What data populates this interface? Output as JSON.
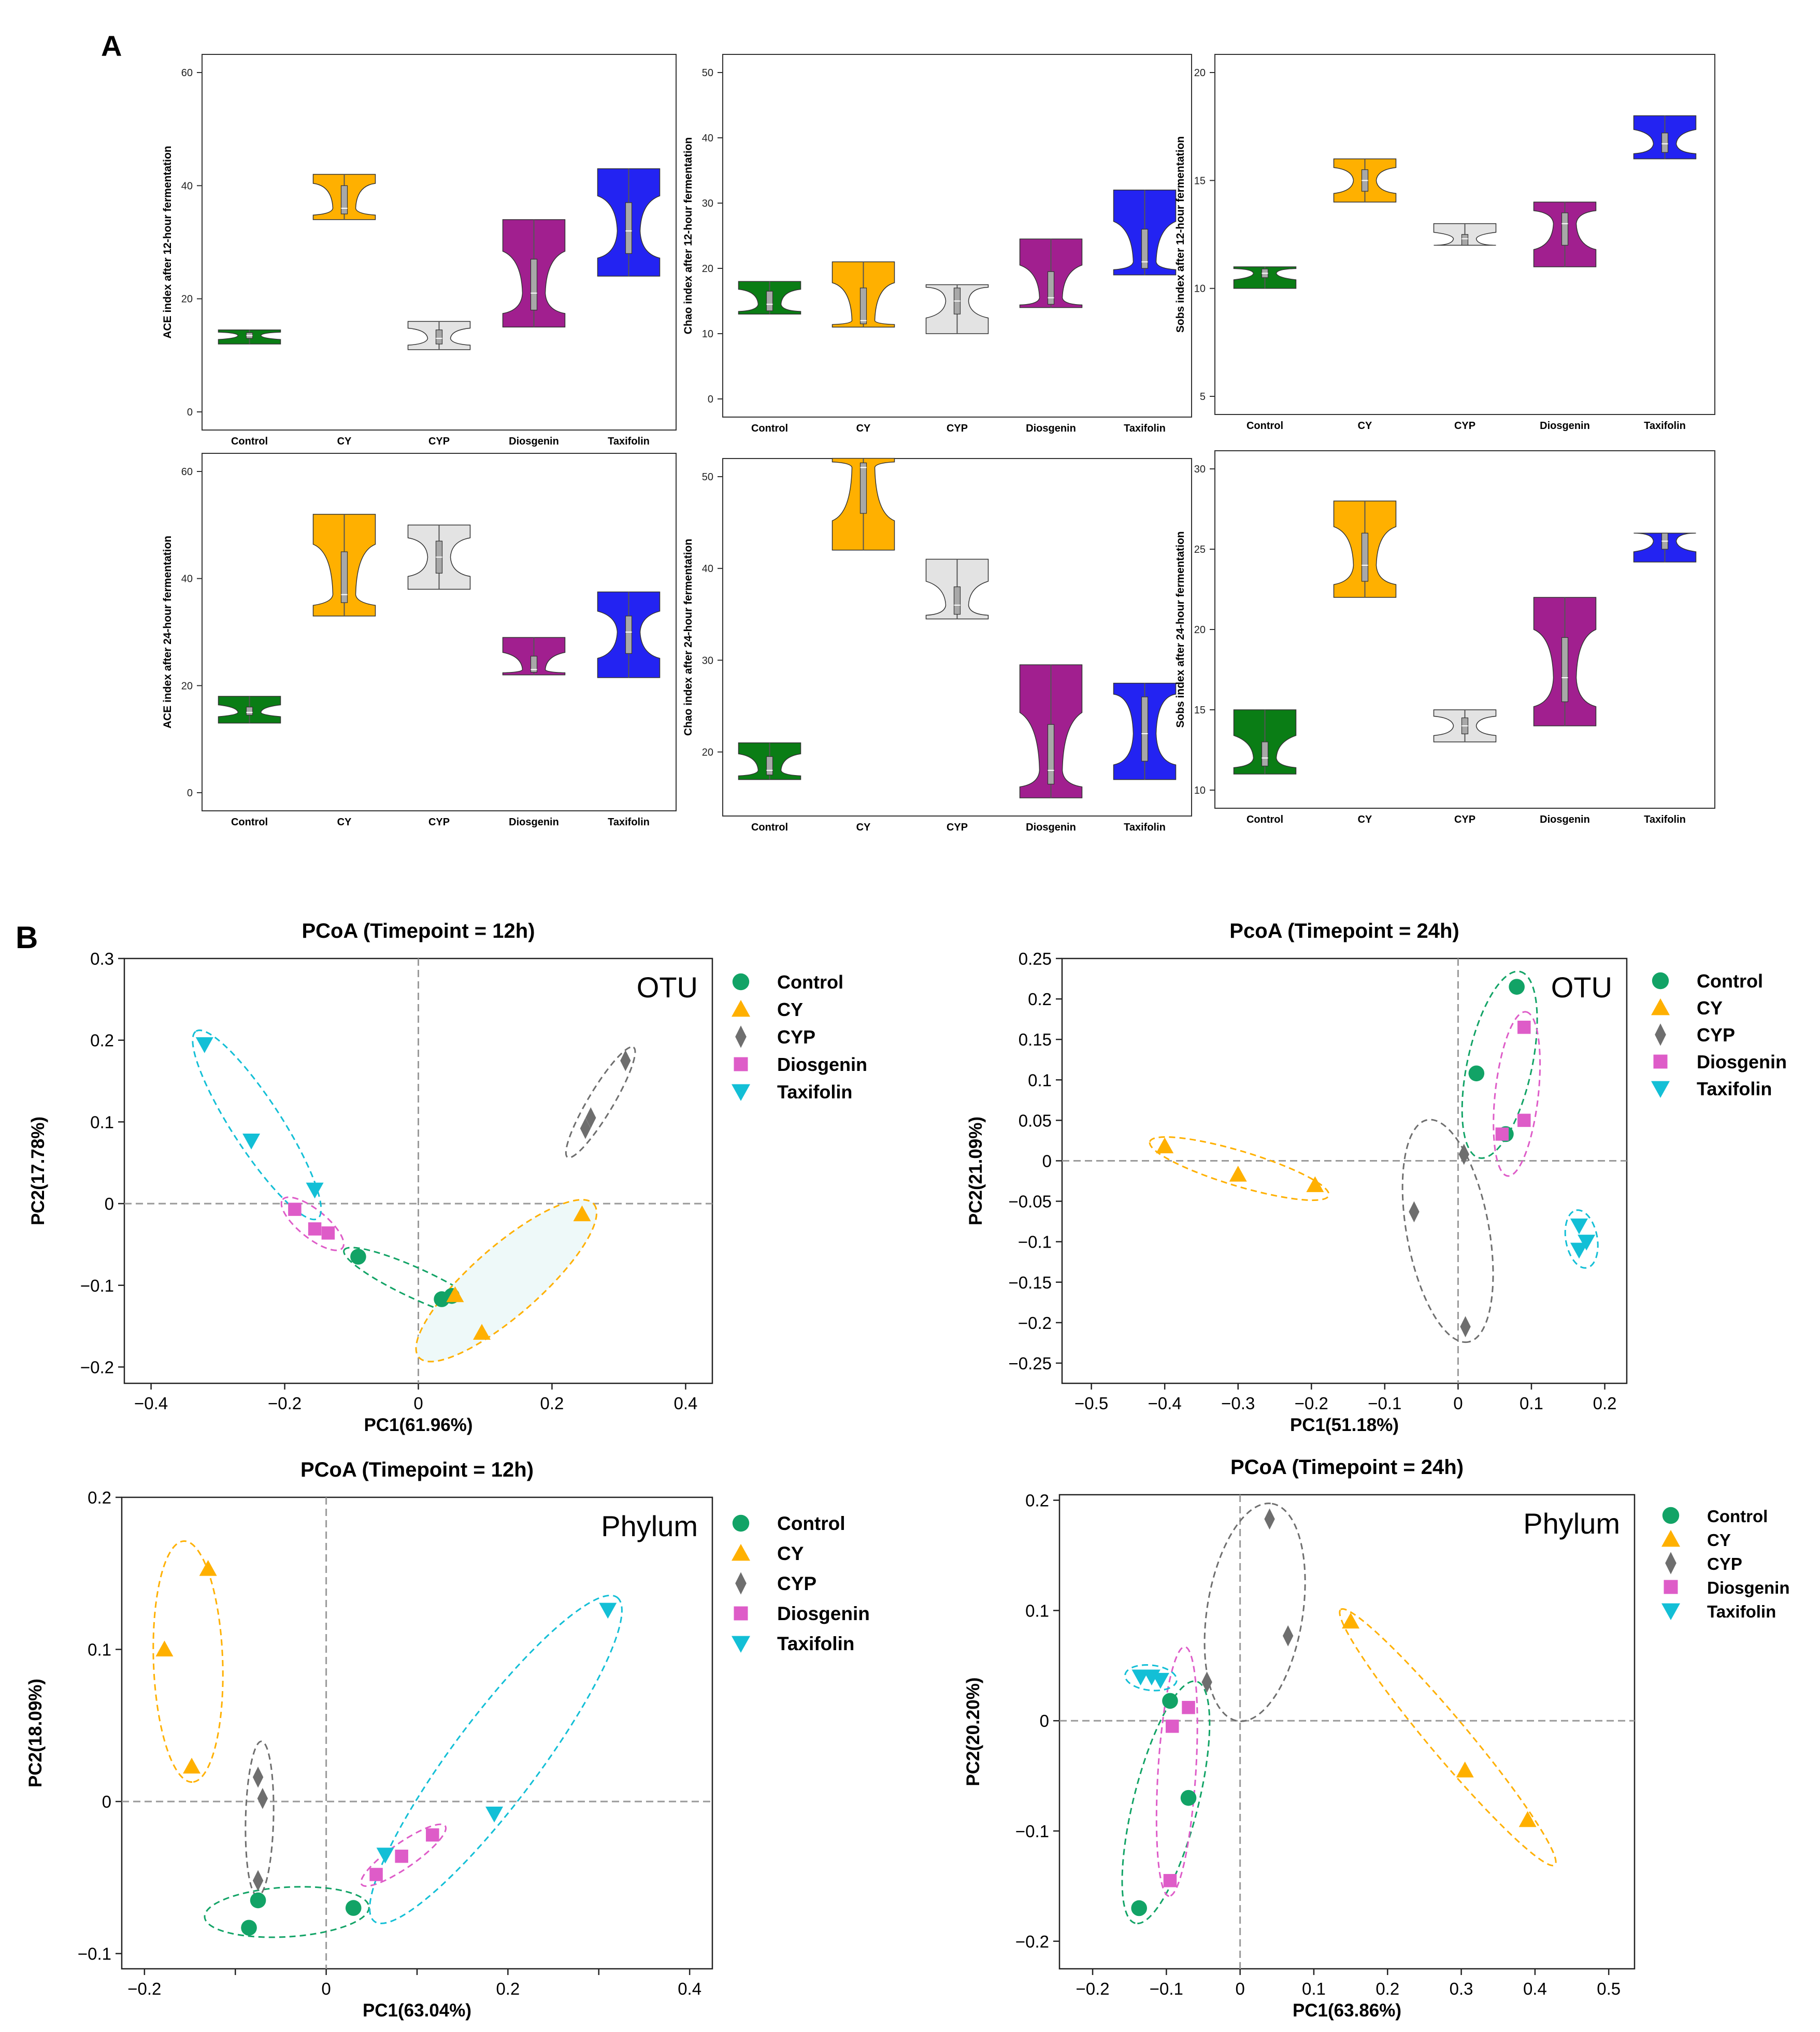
{
  "panel_labels": {
    "a": "A",
    "b": "B"
  },
  "groups": [
    "Control",
    "CY",
    "CYP",
    "Diosgenin",
    "Taxifolin"
  ],
  "colors": {
    "Control_violin": "#0a7d15",
    "CY_violin": "#ffb000",
    "CYP_violin": "#e3e3e3",
    "Diosgenin_violin": "#a11f8f",
    "Taxifolin_violin": "#2323f2",
    "Control_pt": "#12a366",
    "CY_pt": "#ffb000",
    "CYP_pt": "#6e6e6e",
    "Diosgenin_pt": "#de5cc8",
    "Taxifolin_pt": "#13bfd6",
    "box": "#a8a8a8",
    "ellipse_fill_cy": "#eef9f9",
    "axis": "#000000",
    "zero": "#9a9a9a"
  },
  "chart_data": [
    {
      "type": "violin",
      "id": "ace12",
      "ylabel": "ACE index after 12-hour fermentation",
      "ylim": [
        0,
        60
      ],
      "yticks": [
        0,
        20,
        40,
        60
      ],
      "categories": [
        "Control",
        "CY",
        "CYP",
        "Diosgenin",
        "Taxifolin"
      ],
      "series": [
        {
          "name": "Control",
          "min": 12,
          "q1": 13,
          "median": 13.5,
          "q3": 14,
          "max": 14.5
        },
        {
          "name": "CY",
          "min": 34,
          "q1": 35,
          "median": 36,
          "q3": 40,
          "max": 42
        },
        {
          "name": "CYP",
          "min": 11,
          "q1": 12,
          "median": 13,
          "q3": 14.5,
          "max": 16
        },
        {
          "name": "Diosgenin",
          "min": 15,
          "q1": 18,
          "median": 21,
          "q3": 27,
          "max": 34
        },
        {
          "name": "Taxifolin",
          "min": 24,
          "q1": 28,
          "median": 32,
          "q3": 37,
          "max": 43
        }
      ]
    },
    {
      "type": "violin",
      "id": "chao12",
      "ylabel": "Chao index after 12-hour fermentation",
      "ylim": [
        0,
        50
      ],
      "yticks": [
        0,
        10,
        20,
        30,
        40,
        50
      ],
      "categories": [
        "Control",
        "CY",
        "CYP",
        "Diosgenin",
        "Taxifolin"
      ],
      "series": [
        {
          "name": "Control",
          "min": 13,
          "q1": 13.5,
          "median": 14.5,
          "q3": 16.5,
          "max": 18
        },
        {
          "name": "CY",
          "min": 11,
          "q1": 11.5,
          "median": 12,
          "q3": 17,
          "max": 21
        },
        {
          "name": "CYP",
          "min": 10,
          "q1": 13,
          "median": 15,
          "q3": 17,
          "max": 17.5
        },
        {
          "name": "Diosgenin",
          "min": 14,
          "q1": 14.5,
          "median": 15.5,
          "q3": 19.5,
          "max": 24.5
        },
        {
          "name": "Taxifolin",
          "min": 19,
          "q1": 20,
          "median": 21,
          "q3": 26,
          "max": 32
        }
      ]
    },
    {
      "type": "violin",
      "id": "sobs12",
      "ylabel": "Sobs index after 12-hour fermentation",
      "ylim": [
        5,
        20
      ],
      "yticks": [
        5,
        10,
        15,
        20
      ],
      "categories": [
        "Control",
        "CY",
        "CYP",
        "Diosgenin",
        "Taxifolin"
      ],
      "series": [
        {
          "name": "Control",
          "min": 10,
          "q1": 10.5,
          "median": 10.7,
          "q3": 10.9,
          "max": 11
        },
        {
          "name": "CY",
          "min": 14,
          "q1": 14.5,
          "median": 15,
          "q3": 15.5,
          "max": 16
        },
        {
          "name": "CYP",
          "min": 12,
          "q1": 12,
          "median": 12.3,
          "q3": 12.5,
          "max": 13
        },
        {
          "name": "Diosgenin",
          "min": 11,
          "q1": 12,
          "median": 13,
          "q3": 13.5,
          "max": 14
        },
        {
          "name": "Taxifolin",
          "min": 16,
          "q1": 16.3,
          "median": 16.7,
          "q3": 17.2,
          "max": 18
        }
      ]
    },
    {
      "type": "violin",
      "id": "ace24",
      "ylabel": "ACE index after 24-hour fermentation",
      "ylim": [
        0,
        60
      ],
      "yticks": [
        0,
        20,
        40,
        60
      ],
      "categories": [
        "Control",
        "CY",
        "CYP",
        "Diosgenin",
        "Taxifolin"
      ],
      "series": [
        {
          "name": "Control",
          "min": 13,
          "q1": 14.5,
          "median": 15,
          "q3": 16,
          "max": 18
        },
        {
          "name": "CY",
          "min": 33,
          "q1": 35.5,
          "median": 37,
          "q3": 45,
          "max": 52
        },
        {
          "name": "CYP",
          "min": 38,
          "q1": 41,
          "median": 44,
          "q3": 47,
          "max": 50
        },
        {
          "name": "Diosgenin",
          "min": 22,
          "q1": 22.5,
          "median": 23,
          "q3": 25.5,
          "max": 29
        },
        {
          "name": "Taxifolin",
          "min": 21.5,
          "q1": 26,
          "median": 30,
          "q3": 33,
          "max": 37.5
        }
      ]
    },
    {
      "type": "violin",
      "id": "chao24",
      "ylabel": "Chao index after 24-hour fermentation",
      "ylim": [
        15,
        50
      ],
      "yticks": [
        20,
        30,
        40,
        50
      ],
      "categories": [
        "Control",
        "CY",
        "CYP",
        "Diosgenin",
        "Taxifolin"
      ],
      "series": [
        {
          "name": "Control",
          "min": 17,
          "q1": 17.5,
          "median": 18,
          "q3": 19.5,
          "max": 21
        },
        {
          "name": "CY",
          "min": 42,
          "q1": 46,
          "median": 51,
          "q3": 51.5,
          "max": 52
        },
        {
          "name": "CYP",
          "min": 34.5,
          "q1": 35,
          "median": 36,
          "q3": 38,
          "max": 41
        },
        {
          "name": "Diosgenin",
          "min": 15,
          "q1": 16.5,
          "median": 18,
          "q3": 23,
          "max": 29.5
        },
        {
          "name": "Taxifolin",
          "min": 17,
          "q1": 19,
          "median": 22,
          "q3": 26,
          "max": 27.5
        }
      ]
    },
    {
      "type": "violin",
      "id": "sobs24",
      "ylabel": "Sobs index after 24-hour fermentation",
      "ylim": [
        10,
        30
      ],
      "yticks": [
        10,
        15,
        20,
        25,
        30
      ],
      "categories": [
        "Control",
        "CY",
        "CYP",
        "Diosgenin",
        "Taxifolin"
      ],
      "series": [
        {
          "name": "Control",
          "min": 11,
          "q1": 11.5,
          "median": 12,
          "q3": 13,
          "max": 15
        },
        {
          "name": "CY",
          "min": 22,
          "q1": 23,
          "median": 24,
          "q3": 26,
          "max": 28
        },
        {
          "name": "CYP",
          "min": 13,
          "q1": 13.5,
          "median": 14,
          "q3": 14.5,
          "max": 15
        },
        {
          "name": "Diosgenin",
          "min": 14,
          "q1": 15.5,
          "median": 17,
          "q3": 19.5,
          "max": 22
        },
        {
          "name": "Taxifolin",
          "min": 24.2,
          "q1": 25,
          "median": 25.5,
          "q3": 26,
          "max": 26
        }
      ]
    },
    {
      "type": "scatter",
      "id": "otu12",
      "title": "PCoA (Timepoint = 12h)",
      "tag": "OTU",
      "xlabel": "PC1(61.96%)",
      "ylabel": "PC2(17.78%)",
      "xlim": [
        -0.44,
        0.44
      ],
      "ylim": [
        -0.22,
        0.3
      ],
      "xticks": [
        -0.4,
        -0.2,
        0,
        0.2,
        0.4
      ],
      "xtick_labels": [
        "−0.4",
        "−0.2",
        "0",
        "0.2",
        "0.4"
      ],
      "yticks": [
        -0.2,
        -0.1,
        0,
        0.1,
        0.2,
        0.3
      ],
      "ytick_labels": [
        "−0.2",
        "−0.1",
        "0",
        "0.1",
        "0.2",
        "0.3"
      ],
      "legend": "right",
      "series": [
        {
          "name": "Control",
          "points": [
            [
              -0.09,
              -0.065
            ],
            [
              0.035,
              -0.117
            ],
            [
              0.05,
              -0.113
            ]
          ]
        },
        {
          "name": "CY",
          "points": [
            [
              0.245,
              -0.013
            ],
            [
              0.055,
              -0.112
            ],
            [
              0.095,
              -0.158
            ]
          ]
        },
        {
          "name": "CYP",
          "points": [
            [
              0.31,
              0.175
            ],
            [
              0.258,
              0.105
            ],
            [
              0.25,
              0.092
            ]
          ]
        },
        {
          "name": "Diosgenin",
          "points": [
            [
              -0.185,
              -0.007
            ],
            [
              -0.155,
              -0.031
            ],
            [
              -0.135,
              -0.036
            ]
          ]
        },
        {
          "name": "Taxifolin",
          "points": [
            [
              -0.32,
              0.195
            ],
            [
              -0.25,
              0.077
            ],
            [
              -0.155,
              0.017
            ]
          ]
        }
      ]
    },
    {
      "type": "scatter",
      "id": "otu24",
      "title": "PcoA (Timepoint = 24h)",
      "tag": "OTU",
      "xlabel": "PC1(51.18%)",
      "ylabel": "PC2(21.09%)",
      "xlim": [
        -0.54,
        0.23
      ],
      "ylim": [
        -0.275,
        0.25
      ],
      "xticks": [
        -0.5,
        -0.4,
        -0.3,
        -0.2,
        -0.1,
        0,
        0.1,
        0.2
      ],
      "xtick_labels": [
        "−0.5",
        "−0.4",
        "−0.3",
        "−0.2",
        "−0.1",
        "0",
        "0.1",
        "0.2"
      ],
      "yticks": [
        -0.25,
        -0.2,
        -0.15,
        -0.1,
        -0.05,
        0,
        0.05,
        0.1,
        0.15,
        0.2,
        0.25
      ],
      "ytick_labels": [
        "−0.25",
        "−0.2",
        "−0.15",
        "−0.1",
        "−0.05",
        "0",
        "0.05",
        "0.1",
        "0.15",
        "0.2",
        "0.25"
      ],
      "legend": "right",
      "series": [
        {
          "name": "Control",
          "points": [
            [
              0.08,
              0.215
            ],
            [
              0.025,
              0.108
            ],
            [
              0.065,
              0.033
            ]
          ]
        },
        {
          "name": "CY",
          "points": [
            [
              -0.4,
              0.018
            ],
            [
              -0.3,
              -0.017
            ],
            [
              -0.195,
              -0.03
            ]
          ]
        },
        {
          "name": "CYP",
          "points": [
            [
              0.008,
              0.008
            ],
            [
              -0.06,
              -0.063
            ],
            [
              0.01,
              -0.205
            ]
          ]
        },
        {
          "name": "Diosgenin",
          "points": [
            [
              0.09,
              0.165
            ],
            [
              0.09,
              0.05
            ],
            [
              0.06,
              0.033
            ]
          ]
        },
        {
          "name": "Taxifolin",
          "points": [
            [
              0.165,
              -0.08
            ],
            [
              0.175,
              -0.1
            ],
            [
              0.165,
              -0.11
            ]
          ]
        }
      ]
    },
    {
      "type": "scatter",
      "id": "phy12",
      "title": "PCoA (Timepoint = 12h)",
      "tag": "Phylum",
      "xlabel": "PC1(63.04%)",
      "ylabel": "PC2(18.09%)",
      "xlim": [
        -0.225,
        0.425
      ],
      "ylim": [
        -0.11,
        0.2
      ],
      "xticks": [
        -0.2,
        -0.1,
        0,
        0.1,
        0.2,
        0.3,
        0.4
      ],
      "xtick_labels": [
        "−0.2",
        "",
        "0",
        "",
        "0.2",
        "",
        "0.4"
      ],
      "yticks": [
        -0.1,
        0,
        0.1,
        0.2
      ],
      "ytick_labels": [
        "−0.1",
        "0",
        "0.1",
        "0.2"
      ],
      "legend": "right",
      "series": [
        {
          "name": "Control",
          "points": [
            [
              -0.085,
              -0.083
            ],
            [
              -0.075,
              -0.065
            ],
            [
              0.03,
              -0.07
            ]
          ]
        },
        {
          "name": "CY",
          "points": [
            [
              -0.178,
              0.1
            ],
            [
              -0.13,
              0.153
            ],
            [
              -0.148,
              0.023
            ]
          ]
        },
        {
          "name": "CYP",
          "points": [
            [
              -0.075,
              0.016
            ],
            [
              -0.07,
              0.002
            ],
            [
              -0.075,
              -0.052
            ]
          ]
        },
        {
          "name": "Diosgenin",
          "points": [
            [
              0.055,
              -0.048
            ],
            [
              0.083,
              -0.036
            ],
            [
              0.117,
              -0.022
            ]
          ]
        },
        {
          "name": "Taxifolin",
          "points": [
            [
              0.31,
              0.126
            ],
            [
              0.185,
              -0.008
            ],
            [
              0.065,
              -0.035
            ]
          ]
        }
      ]
    },
    {
      "type": "scatter",
      "id": "phy24",
      "title": "PCoA (Timepoint = 24h)",
      "tag": "Phylum",
      "xlabel": "PC1(63.86%)",
      "ylabel": "PC2(20.20%)",
      "xlim": [
        -0.245,
        0.535
      ],
      "ylim": [
        -0.225,
        0.205
      ],
      "xticks": [
        -0.2,
        -0.1,
        0,
        0.1,
        0.2,
        0.3,
        0.4,
        0.5
      ],
      "xtick_labels": [
        "−0.2",
        "−0.1",
        "0",
        "0.1",
        "0.2",
        "0.3",
        "0.4",
        "0.5"
      ],
      "yticks": [
        -0.2,
        -0.1,
        0,
        0.1,
        0.2
      ],
      "ytick_labels": [
        "−0.2",
        "−0.1",
        "0",
        "0.1",
        "0.2"
      ],
      "legend": "right",
      "series": [
        {
          "name": "Control",
          "points": [
            [
              -0.095,
              0.018
            ],
            [
              -0.07,
              -0.07
            ],
            [
              -0.137,
              -0.17
            ]
          ]
        },
        {
          "name": "CY",
          "points": [
            [
              0.15,
              0.09
            ],
            [
              0.305,
              -0.045
            ],
            [
              0.39,
              -0.09
            ]
          ]
        },
        {
          "name": "CYP",
          "points": [
            [
              0.04,
              0.183
            ],
            [
              0.065,
              0.077
            ],
            [
              -0.045,
              0.035
            ]
          ]
        },
        {
          "name": "Diosgenin",
          "points": [
            [
              -0.07,
              0.012
            ],
            [
              -0.092,
              -0.005
            ],
            [
              -0.095,
              -0.145
            ]
          ]
        },
        {
          "name": "Taxifolin",
          "points": [
            [
              -0.135,
              0.04
            ],
            [
              -0.12,
              0.04
            ],
            [
              -0.108,
              0.037
            ]
          ]
        }
      ]
    }
  ]
}
